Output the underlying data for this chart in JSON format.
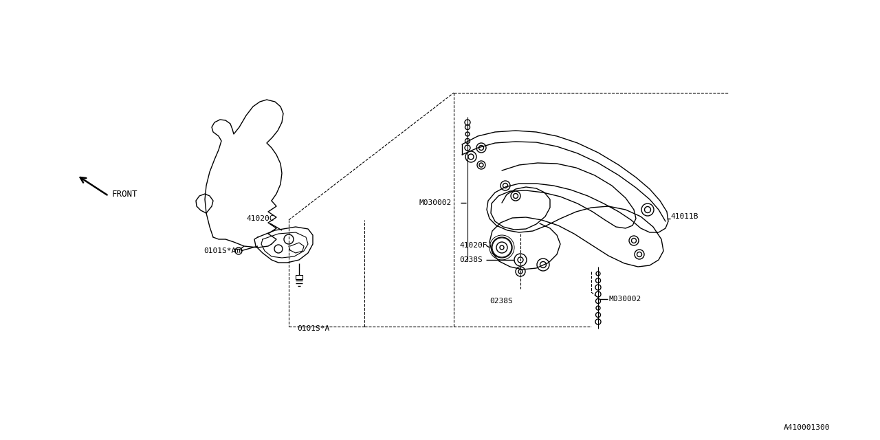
{
  "bg_color": "#ffffff",
  "line_color": "#000000",
  "fig_width": 12.8,
  "fig_height": 6.4,
  "dpi": 100,
  "diagram_id": "A410001300",
  "labels": {
    "front": "FRONT",
    "41020C": "41020C",
    "0101SA_top": "0101S*A",
    "0101SA_bot": "0101S*A",
    "41011B": "41011B",
    "41020F": "41020F",
    "0238S_top": "0238S",
    "0238S_bot": "0238S",
    "M030002_top": "M030002",
    "M030002_bot": "M030002"
  }
}
